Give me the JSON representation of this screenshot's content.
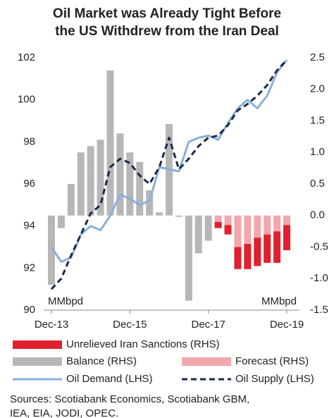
{
  "chart_data": {
    "type": "bar-line",
    "title": [
      "Oil Market was Already Tight Before",
      "the US Withdrew from the Iran Deal"
    ],
    "categories": [
      "Dec-13",
      null,
      null,
      null,
      null,
      null,
      null,
      null,
      "Dec-15",
      null,
      null,
      null,
      null,
      null,
      null,
      null,
      "Dec-17",
      null,
      null,
      null,
      null,
      null,
      null,
      null,
      "Dec-19"
    ],
    "ylim": [
      90,
      102
    ],
    "yticks": [
      90,
      92,
      94,
      96,
      98,
      100,
      102
    ],
    "y2lim": [
      -1.5,
      2.5
    ],
    "y2ticks": [
      {
        "value": -1.5,
        "label": "-1.5"
      },
      {
        "value": -1,
        "label": "-1.0"
      },
      -0.5,
      {
        "value": 0,
        "label": "0.0"
      },
      0.5,
      {
        "value": 1,
        "label": "1.0"
      },
      1.5,
      {
        "value": 2,
        "label": "2.0"
      },
      2.5
    ],
    "ylabel": "MMbpd",
    "y2label": "MMbpd",
    "series": [
      {
        "name": "Unrelieved Iran Sanctions (RHS)",
        "kind": "bar",
        "axis": "y2",
        "stack": "f",
        "color": "#e0202e",
        "values": [
          null,
          null,
          null,
          null,
          null,
          null,
          null,
          null,
          null,
          null,
          null,
          null,
          null,
          null,
          null,
          null,
          null,
          -0.1,
          -0.15,
          -0.35,
          -0.4,
          -0.45,
          -0.45,
          -0.5,
          -0.4
        ]
      },
      {
        "name": "Balance (RHS)",
        "kind": "bar",
        "axis": "y2",
        "color": "#b7b7b7",
        "values": [
          -1.1,
          -0.2,
          0.5,
          1.0,
          1.1,
          1.2,
          2.3,
          1.3,
          1.0,
          0.85,
          0.4,
          0.05,
          1.45,
          -0.02,
          -1.35,
          -0.6,
          -0.4,
          null,
          null,
          null,
          null,
          null,
          null,
          null,
          null
        ]
      },
      {
        "name": "Forecast (RHS)",
        "kind": "bar",
        "axis": "y2",
        "stack": "f",
        "color": "#f2a7ad",
        "values": [
          null,
          null,
          null,
          null,
          null,
          null,
          null,
          null,
          null,
          null,
          null,
          null,
          null,
          null,
          null,
          null,
          null,
          -0.1,
          -0.15,
          -0.5,
          -0.45,
          -0.35,
          -0.3,
          -0.25,
          -0.15
        ]
      },
      {
        "name": "Oil Demand (LHS)",
        "kind": "line",
        "color": "#8aafdc",
        "values": [
          93.0,
          92.3,
          92.5,
          93.6,
          94.0,
          93.8,
          94.5,
          95.5,
          95.3,
          95.0,
          95.2,
          96.8,
          96.7,
          96.6,
          98.0,
          98.2,
          98.3,
          98.1,
          98.9,
          99.6,
          100.0,
          99.6,
          100.2,
          101.3,
          101.9
        ]
      },
      {
        "name": "Oil Supply (LHS)",
        "kind": "line",
        "dash": true,
        "color": "#1b2a4a",
        "values": [
          91.0,
          91.5,
          92.6,
          93.6,
          94.6,
          95.0,
          96.8,
          97.2,
          97.0,
          96.4,
          96.0,
          96.8,
          98.2,
          96.7,
          97.2,
          97.8,
          98.2,
          98.3,
          98.8,
          99.5,
          99.8,
          100.2,
          100.7,
          101.4,
          101.9
        ]
      }
    ],
    "source": [
      "Sources: Scotiabank Economics, Scotiabank GBM,",
      "IEA, EIA, JODI, OPEC."
    ]
  }
}
